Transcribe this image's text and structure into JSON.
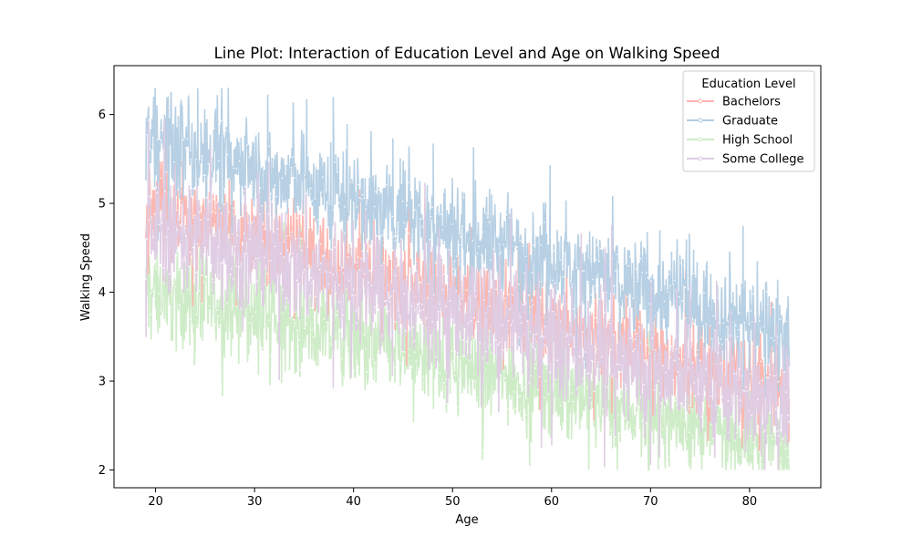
{
  "chart_data": {
    "type": "line",
    "title": "Line Plot: Interaction of Education Level and Age on Walking Speed",
    "xlabel": "Age",
    "ylabel": "Walking Speed",
    "xlim": [
      15.8,
      87.2
    ],
    "ylim": [
      1.8,
      6.55
    ],
    "x_ticks": [
      "20",
      "30",
      "40",
      "50",
      "60",
      "70",
      "80"
    ],
    "y_ticks": [
      "2",
      "3",
      "4",
      "5",
      "6"
    ],
    "grid": false,
    "legend": {
      "title": "Education Level",
      "position": "top-right"
    },
    "x_range": [
      19,
      84
    ],
    "series": [
      {
        "name": "Bachelors",
        "color": "#fbb4ae",
        "marker": "x",
        "start": 5.0,
        "end": 2.85,
        "spread": 0.42
      },
      {
        "name": "Graduate",
        "color": "#b3cde3",
        "marker": "circle",
        "start": 5.75,
        "end": 3.55,
        "spread": 0.5
      },
      {
        "name": "High School",
        "color": "#ccebc5",
        "marker": "x",
        "start": 4.05,
        "end": 2.25,
        "spread": 0.45
      },
      {
        "name": "Some College",
        "color": "#decbe4",
        "marker": "circle",
        "start": 4.75,
        "end": 2.7,
        "spread": 0.55
      }
    ]
  }
}
